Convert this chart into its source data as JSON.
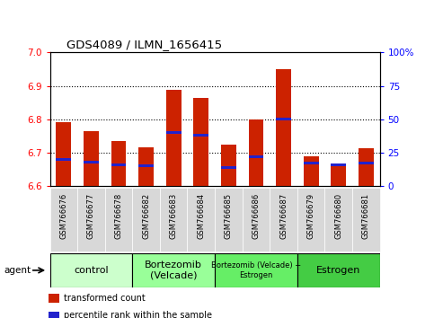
{
  "title": "GDS4089 / ILMN_1656415",
  "samples": [
    "GSM766676",
    "GSM766677",
    "GSM766678",
    "GSM766682",
    "GSM766683",
    "GSM766684",
    "GSM766685",
    "GSM766686",
    "GSM766687",
    "GSM766679",
    "GSM766680",
    "GSM766681"
  ],
  "bar_tops": [
    6.79,
    6.765,
    6.735,
    6.715,
    6.887,
    6.865,
    6.724,
    6.8,
    6.95,
    6.69,
    6.665,
    6.712
  ],
  "percentile_values": [
    20,
    18,
    16,
    15,
    40,
    38,
    14,
    22,
    50,
    17,
    16,
    17
  ],
  "bar_color": "#cc2200",
  "percentile_color": "#2222cc",
  "baseline": 6.6,
  "ylim_left": [
    6.6,
    7.0
  ],
  "ylim_right": [
    0,
    100
  ],
  "yticks_left": [
    6.6,
    6.7,
    6.8,
    6.9,
    7.0
  ],
  "yticks_right": [
    0,
    25,
    50,
    75,
    100
  ],
  "ytick_labels_right": [
    "0",
    "25",
    "50",
    "75",
    "100%"
  ],
  "gridlines": [
    6.7,
    6.8,
    6.9
  ],
  "groups": [
    {
      "label": "control",
      "start": 0,
      "end": 3,
      "color": "#ccffcc",
      "fontsize": 8
    },
    {
      "label": "Bortezomib\n(Velcade)",
      "start": 3,
      "end": 6,
      "color": "#99ff99",
      "fontsize": 8
    },
    {
      "label": "Bortezomib (Velcade) +\nEstrogen",
      "start": 6,
      "end": 9,
      "color": "#66ee66",
      "fontsize": 6
    },
    {
      "label": "Estrogen",
      "start": 9,
      "end": 12,
      "color": "#44cc44",
      "fontsize": 8
    }
  ],
  "legend_items": [
    {
      "label": "transformed count",
      "color": "#cc2200"
    },
    {
      "label": "percentile rank within the sample",
      "color": "#2222cc"
    }
  ],
  "bar_width": 0.55
}
